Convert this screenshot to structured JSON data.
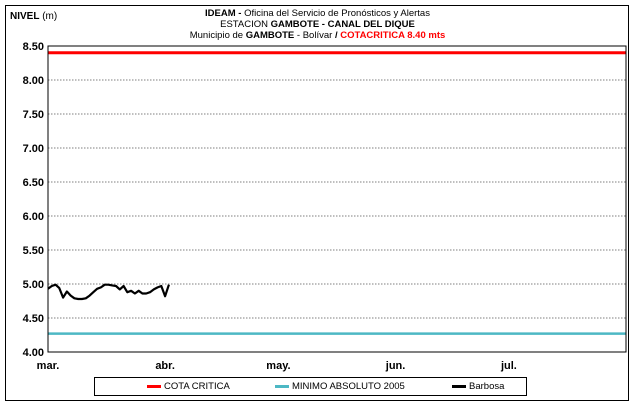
{
  "title": {
    "line1_bold": "IDEAM -",
    "line1_rest": " Oficina del Servicio de Pronósticos y Alertas",
    "line2_pre": "ESTACION ",
    "line2_bold": "GAMBOTE -  CANAL DEL DIQUE",
    "line3_pre": "Municipio de ",
    "line3_bold": "GAMBOTE",
    "line3_mid": " - Bolívar ",
    "line3_sep": " / ",
    "line3_red": " COTACRITICA 8.40  mts"
  },
  "ylabel": {
    "bold": "NIVEL",
    "unit": " (m)"
  },
  "colors": {
    "cota_critica": "#ff0000",
    "minimo": "#4db8c4",
    "barbosa": "#000000"
  },
  "legend": [
    {
      "name": "COTA CRITICA",
      "color": "#ff0000"
    },
    {
      "name": "MINIMO ABSOLUTO 2005",
      "color": "#4db8c4"
    },
    {
      "name": "Barbosa",
      "color": "#000000"
    }
  ],
  "chart_data": {
    "type": "line",
    "ylim": [
      4.0,
      8.5
    ],
    "y_ticks": [
      "4.00",
      "4.50",
      "5.00",
      "5.50",
      "6.00",
      "6.50",
      "7.00",
      "7.50",
      "8.00",
      "8.50"
    ],
    "x_ticks": [
      "mar.",
      "abr.",
      "may.",
      "jun.",
      "jul."
    ],
    "x_range_days": [
      0,
      153
    ],
    "x_tick_days": [
      0,
      31,
      61,
      92,
      122
    ],
    "grid": true,
    "legend_position": "bottom",
    "series": [
      {
        "name": "COTA CRITICA",
        "constant": 8.4
      },
      {
        "name": "MINIMO ABSOLUTO 2005",
        "constant": 4.27
      },
      {
        "name": "Barbosa",
        "x": [
          0,
          1,
          2,
          3,
          4,
          5,
          6,
          7,
          8,
          9,
          10,
          11,
          12,
          13,
          14,
          15,
          16,
          17,
          18,
          19,
          20,
          21,
          22,
          23,
          24,
          25,
          26,
          27,
          28,
          29,
          30,
          31,
          32
        ],
        "values": [
          4.93,
          4.97,
          4.99,
          4.94,
          4.8,
          4.89,
          4.83,
          4.79,
          4.78,
          4.78,
          4.79,
          4.83,
          4.88,
          4.93,
          4.95,
          4.99,
          4.99,
          4.98,
          4.97,
          4.92,
          4.97,
          4.88,
          4.9,
          4.86,
          4.9,
          4.86,
          4.86,
          4.88,
          4.92,
          4.95,
          4.97,
          4.82,
          4.99
        ]
      }
    ]
  }
}
